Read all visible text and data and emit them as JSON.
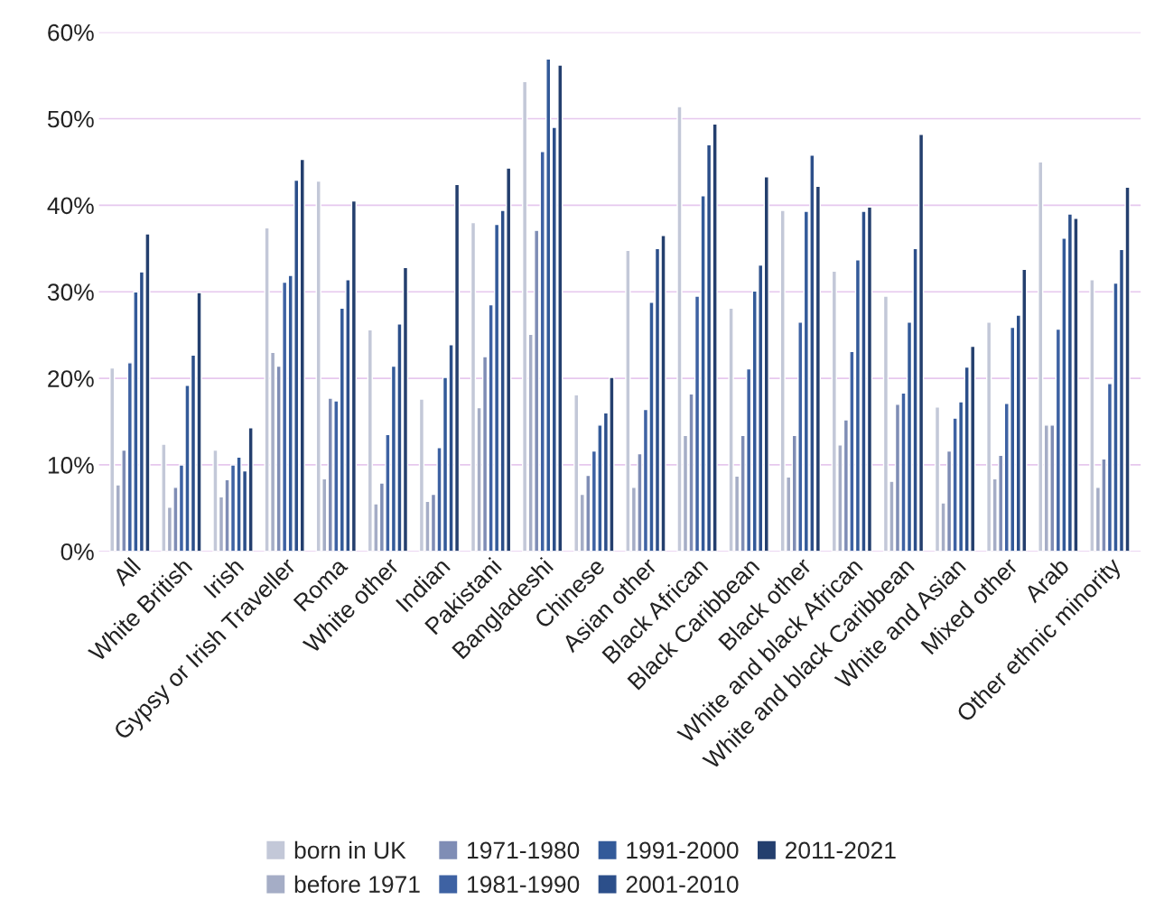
{
  "chart_data": {
    "type": "bar",
    "categories": [
      "All",
      "White British",
      "Irish",
      "Gypsy or Irish Traveller",
      "Roma",
      "White other",
      "Indian",
      "Pakistani",
      "Bangladeshi",
      "Chinese",
      "Asian other",
      "Black African",
      "Black Caribbean",
      "Black other",
      "White and black African",
      "White and black Caribbean",
      "White and Asian",
      "Mixed other",
      "Arab",
      "Other ethnic minority"
    ],
    "series": [
      {
        "name": "born in UK",
        "color": "#c3c8d8",
        "values": [
          21.2,
          12.4,
          11.7,
          37.4,
          42.8,
          25.6,
          17.6,
          38,
          54.3,
          18.1,
          34.8,
          51.4,
          28.1,
          39.4,
          32.4,
          29.5,
          16.7,
          26.5,
          45,
          31.4
        ]
      },
      {
        "name": "before 1971",
        "color": "#a5adc6",
        "values": [
          7.7,
          5.1,
          6.3,
          23,
          8.4,
          5.5,
          5.8,
          16.6,
          25.1,
          6.6,
          7.4,
          13.4,
          8.7,
          8.6,
          12.3,
          8.1,
          5.6,
          8.4,
          14.6,
          7.4
        ]
      },
      {
        "name": "1971-1980",
        "color": "#7f8db5",
        "values": [
          11.7,
          7.4,
          8.3,
          21.4,
          17.7,
          7.9,
          6.6,
          22.5,
          37.1,
          8.8,
          11.3,
          18.2,
          13.4,
          13.4,
          15.2,
          17,
          11.6,
          11.1,
          14.6,
          10.7
        ]
      },
      {
        "name": "1981-1990",
        "color": "#3e62a3",
        "values": [
          21.8,
          10,
          10,
          31.1,
          17.4,
          13.5,
          12,
          28.5,
          46.2,
          11.6,
          16.4,
          29.5,
          21.1,
          26.5,
          23.1,
          18.3,
          15.4,
          17.1,
          25.7,
          19.4
        ]
      },
      {
        "name": "1991-2000",
        "color": "#335a99",
        "values": [
          30,
          19.2,
          10.9,
          31.9,
          28.1,
          21.4,
          20.1,
          37.8,
          56.9,
          14.6,
          28.8,
          41.1,
          30.1,
          39.3,
          33.7,
          26.5,
          17.3,
          25.9,
          36.2,
          31
        ]
      },
      {
        "name": "2001-2010",
        "color": "#2c4f8a",
        "values": [
          32.3,
          22.7,
          9.3,
          42.9,
          31.4,
          26.3,
          23.9,
          39.4,
          49,
          16,
          35,
          47,
          33.1,
          45.8,
          39.3,
          35,
          21.3,
          27.3,
          39,
          34.9
        ]
      },
      {
        "name": "2011-2021",
        "color": "#243f6e",
        "values": [
          36.7,
          29.9,
          14.3,
          45.3,
          40.5,
          32.8,
          42.4,
          44.3,
          56.2,
          20.1,
          36.5,
          49.4,
          43.3,
          42.2,
          39.8,
          48.2,
          23.7,
          32.6,
          38.5,
          42.1
        ]
      }
    ],
    "ylim": [
      0,
      60
    ],
    "yticks": [
      {
        "value": 0,
        "label": "0%"
      },
      {
        "value": 10,
        "label": "10%"
      },
      {
        "value": 20,
        "label": "20%"
      },
      {
        "value": 30,
        "label": "30%"
      },
      {
        "value": 40,
        "label": "40%"
      },
      {
        "value": 50,
        "label": "50%"
      },
      {
        "value": 60,
        "label": "60%"
      }
    ],
    "grid": "y",
    "legend": "bottom"
  }
}
